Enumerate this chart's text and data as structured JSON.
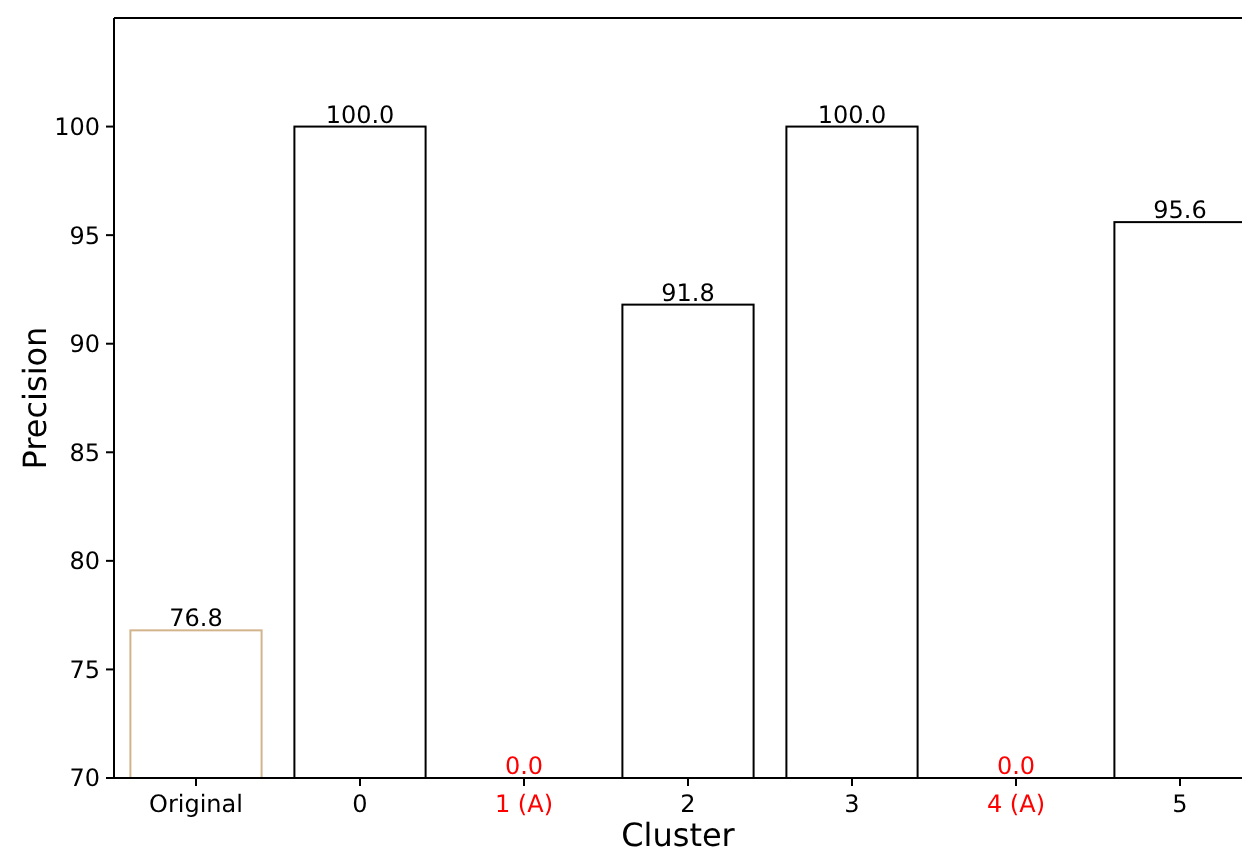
{
  "chart_data": {
    "type": "bar",
    "xlabel": "Cluster",
    "ylabel": "Precision",
    "categories": [
      "Original",
      "0",
      "1 (A)",
      "2",
      "3",
      "4 (A)",
      "5"
    ],
    "values": [
      76.8,
      100.0,
      null,
      91.8,
      100.0,
      null,
      95.6
    ],
    "value_labels": [
      "76.8",
      "100.0",
      "0.0",
      "91.8",
      "100.0",
      "0.0",
      "95.6"
    ],
    "colors": [
      "#d2b48c",
      "#000000",
      "#ff0000",
      "#000000",
      "#000000",
      "#ff0000",
      "#000000"
    ],
    "ylim": [
      70,
      105
    ],
    "yticks": [
      70,
      75,
      80,
      85,
      90,
      95,
      100
    ]
  }
}
